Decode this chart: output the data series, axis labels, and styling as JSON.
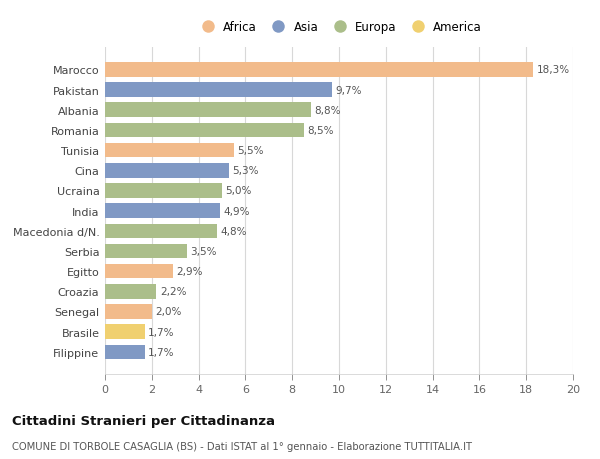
{
  "countries": [
    "Marocco",
    "Pakistan",
    "Albania",
    "Romania",
    "Tunisia",
    "Cina",
    "Ucraina",
    "India",
    "Macedonia d/N.",
    "Serbia",
    "Egitto",
    "Croazia",
    "Senegal",
    "Brasile",
    "Filippine"
  ],
  "values": [
    18.3,
    9.7,
    8.8,
    8.5,
    5.5,
    5.3,
    5.0,
    4.9,
    4.8,
    3.5,
    2.9,
    2.2,
    2.0,
    1.7,
    1.7
  ],
  "labels": [
    "18,3%",
    "9,7%",
    "8,8%",
    "8,5%",
    "5,5%",
    "5,3%",
    "5,0%",
    "4,9%",
    "4,8%",
    "3,5%",
    "2,9%",
    "2,2%",
    "2,0%",
    "1,7%",
    "1,7%"
  ],
  "categories": [
    "Africa",
    "Asia",
    "Europa",
    "America"
  ],
  "continents": [
    "Africa",
    "Asia",
    "Europa",
    "Europa",
    "Africa",
    "Asia",
    "Europa",
    "Asia",
    "Europa",
    "Europa",
    "Africa",
    "Europa",
    "Africa",
    "America",
    "Asia"
  ],
  "colors": {
    "Africa": "#F2BB8B",
    "Asia": "#8099C4",
    "Europa": "#ABBE8A",
    "America": "#F0D070"
  },
  "background_color": "#ffffff",
  "grid_color": "#d8d8d8",
  "title": "Cittadini Stranieri per Cittadinanza",
  "subtitle": "COMUNE DI TORBOLE CASAGLIA (BS) - Dati ISTAT al 1° gennaio - Elaborazione TUTTITALIA.IT",
  "xlim": [
    0,
    20
  ],
  "xticks": [
    0,
    2,
    4,
    6,
    8,
    10,
    12,
    14,
    16,
    18,
    20
  ]
}
